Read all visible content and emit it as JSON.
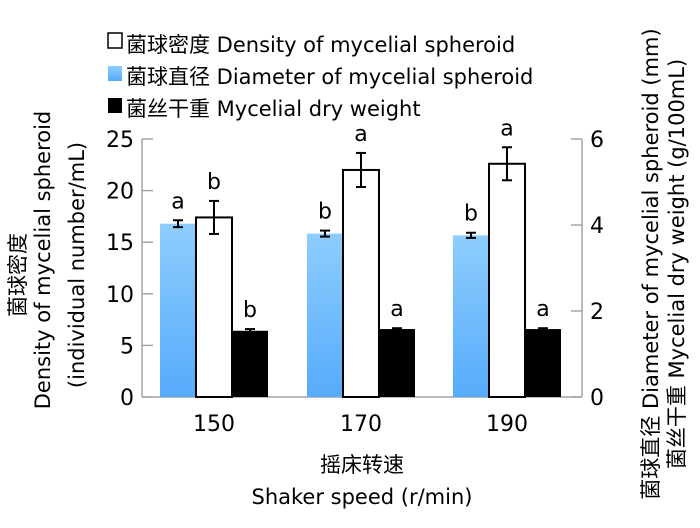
{
  "chart_data": {
    "type": "bar",
    "categories": [
      "150",
      "170",
      "190"
    ],
    "xlabel_cn": "摇床转速",
    "xlabel": "Shaker speed (r/min)",
    "ylabel_left_cn": "菌球密度",
    "ylabel_left": "Density of mycelial spheroid",
    "ylabel_left_unit": "(individual number/mL)",
    "ylabel_right_1": "菌球直径 Diameter of mycelial spheroid (mm)",
    "ylabel_right_2": "菌丝干重 Mycelial dry weight (g/100mL)",
    "ylim_left": [
      0,
      25
    ],
    "yticks_left": [
      "0",
      "5",
      "10",
      "15",
      "20",
      "25"
    ],
    "ylim_right": [
      0,
      6
    ],
    "yticks_right": [
      "0",
      "2",
      "4",
      "6"
    ],
    "legend_position": "top",
    "series": [
      {
        "name": "菌球直径 Diameter of mycelial spheroid",
        "axis": "right",
        "color": "#5aaefb",
        "color_top": "#8ecdfd",
        "values": [
          4.03,
          3.8,
          3.76
        ],
        "errors": [
          0.08,
          0.07,
          0.06
        ],
        "letters": [
          "a",
          "b",
          "b"
        ]
      },
      {
        "name": "菌球密度 Density of mycelial spheroid",
        "axis": "left",
        "color": "#ffffff",
        "values": [
          17.4,
          22.0,
          22.6
        ],
        "errors": [
          1.6,
          1.65,
          1.6
        ],
        "letters": [
          "b",
          "a",
          "a"
        ]
      },
      {
        "name": "菌丝干重 Mycelial dry weight",
        "axis": "right",
        "color": "#000000",
        "values": [
          1.54,
          1.58,
          1.58
        ],
        "errors": [
          0.04,
          0.02,
          0.02
        ],
        "letters": [
          "b",
          "a",
          "a"
        ]
      }
    ],
    "legend": [
      "菌球密度 Density of mycelial spheroid",
      "菌球直径 Diameter of mycelial spheroid",
      "菌丝干重 Mycelial dry weight"
    ]
  }
}
